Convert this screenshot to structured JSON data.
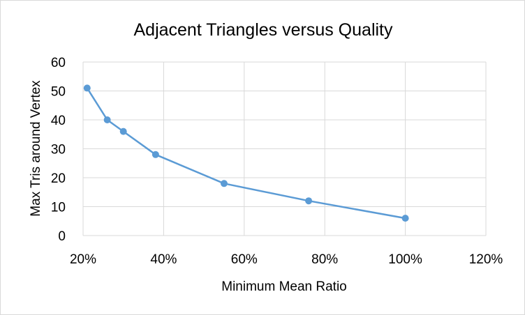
{
  "chart_data": {
    "type": "scatter",
    "title": "Adjacent Triangles versus Quality",
    "xlabel": "Minimum Mean Ratio",
    "ylabel": "Max Tris around Vertex",
    "xlim": [
      0.2,
      1.2
    ],
    "ylim": [
      0,
      60
    ],
    "x_ticks": [
      0.2,
      0.4,
      0.6,
      0.8,
      1.0,
      1.2
    ],
    "x_tick_labels": [
      "20%",
      "40%",
      "60%",
      "80%",
      "100%",
      "120%"
    ],
    "y_ticks": [
      0,
      10,
      20,
      30,
      40,
      50,
      60
    ],
    "y_tick_labels": [
      "0",
      "10",
      "20",
      "30",
      "40",
      "50",
      "60"
    ],
    "grid": true,
    "legend": "none",
    "series": [
      {
        "x": [
          0.21,
          0.26,
          0.3,
          0.38,
          0.55,
          0.76,
          1.0
        ],
        "y": [
          51,
          40,
          36,
          28,
          18,
          12,
          6
        ],
        "color": "#5b9bd5",
        "markers": true
      }
    ]
  }
}
